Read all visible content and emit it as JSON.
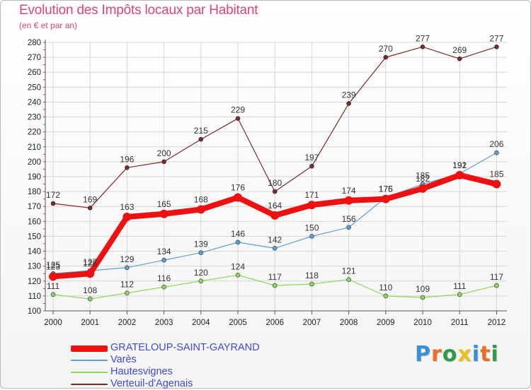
{
  "title": "Evolution des Impôts locaux par Habitant",
  "subtitle": "(en € et par an)",
  "logo": {
    "text": "Proxiti",
    "letter_colors": [
      "#3a8fd6",
      "#e8702a",
      "#2f9a4a",
      "#e8c020",
      "#3a8fd6",
      "#e8702a",
      "#2f9a4a"
    ]
  },
  "chart_data": {
    "type": "line",
    "title": "Evolution des Impôts locaux par Habitant",
    "subtitle": "(en € et par an)",
    "xlabel": "",
    "ylabel": "",
    "ylim": [
      100,
      280
    ],
    "ytick_step": 10,
    "grid": true,
    "legend_position": "bottom-left",
    "x": [
      "2000",
      "2001",
      "2002",
      "2003",
      "2004",
      "2005",
      "2006",
      "2007",
      "2008",
      "2009",
      "2010",
      "2011",
      "2012"
    ],
    "series": [
      {
        "name": "Verteuil-d'Agenais",
        "color": "#7b2a2a",
        "weight": "thin",
        "values": [
          172,
          169,
          196,
          200,
          215,
          229,
          180,
          197,
          239,
          270,
          277,
          269,
          277
        ]
      },
      {
        "name": "Varès",
        "color": "#5b9fd6",
        "weight": "thin",
        "values": [
          125,
          127,
          129,
          134,
          139,
          146,
          142,
          150,
          156,
          176,
          185,
          192,
          206
        ]
      },
      {
        "name": "Hautesvignes",
        "color": "#8ed65c",
        "weight": "thin",
        "values": [
          111,
          108,
          112,
          116,
          120,
          124,
          117,
          118,
          121,
          110,
          109,
          111,
          117
        ]
      },
      {
        "name": "GRATELOUP-SAINT-GAYRAND",
        "color": "#ee1111",
        "weight": "thick",
        "values": [
          123,
          125,
          163,
          165,
          168,
          176,
          164,
          171,
          174,
          175,
          182,
          191,
          185
        ]
      }
    ]
  },
  "legend": [
    {
      "name": "GRATELOUP-SAINT-GAYRAND",
      "color": "#ee1111",
      "weight": "thick"
    },
    {
      "name": "Varès",
      "color": "#5b9fd6",
      "weight": "thin"
    },
    {
      "name": "Hautesvignes",
      "color": "#8ed65c",
      "weight": "thin"
    },
    {
      "name": "Verteuil-d'Agenais",
      "color": "#7b2a2a",
      "weight": "thin"
    }
  ]
}
